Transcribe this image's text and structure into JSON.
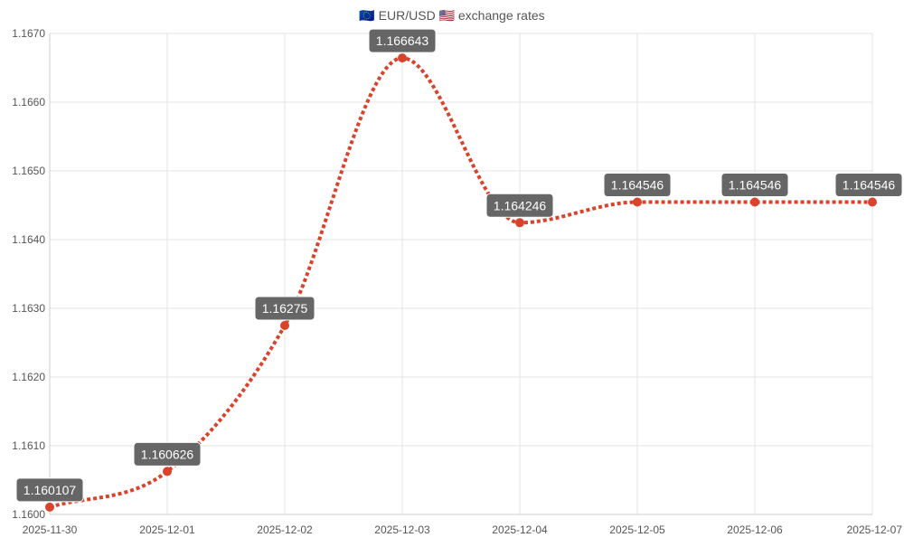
{
  "chart_data": {
    "type": "line",
    "title": "🇪🇺 EUR/USD 🇺🇸 exchange rates",
    "x": [
      "2025-11-30",
      "2025-12-01",
      "2025-12-02",
      "2025-12-03",
      "2025-12-04",
      "2025-12-05",
      "2025-12-06",
      "2025-12-07"
    ],
    "series": [
      {
        "values": [
          1.160107,
          1.160626,
          1.16275,
          1.166643,
          1.164246,
          1.164546,
          1.164546,
          1.164546
        ],
        "labels": [
          "1.160107",
          "1.160626",
          "1.16275",
          "1.166643",
          "1.164246",
          "1.164546",
          "1.164546",
          "1.164546"
        ]
      }
    ],
    "ylim": [
      1.16,
      1.167
    ],
    "yticks": [
      "1.1600",
      "1.1610",
      "1.1620",
      "1.1630",
      "1.1640",
      "1.1650",
      "1.1660",
      "1.1670"
    ],
    "grid": true,
    "line_color": "#d9432b",
    "line_style": "dotted",
    "data_label_color": "#666666"
  }
}
